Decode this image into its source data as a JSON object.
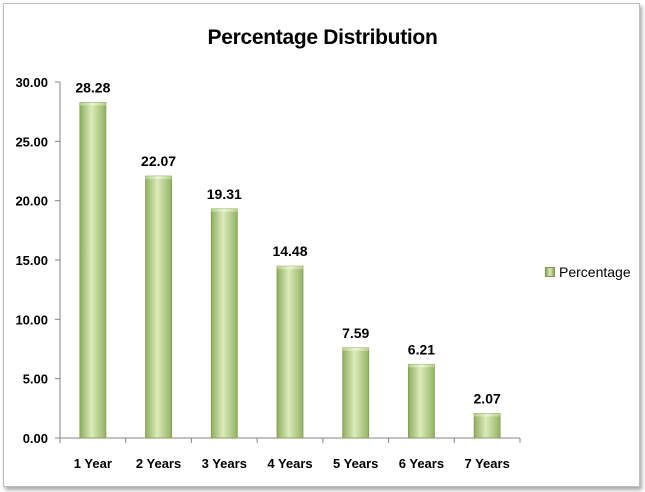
{
  "chart_data": {
    "type": "bar",
    "title": "Percentage Distribution",
    "categories": [
      "1 Year",
      "2 Years",
      "3 Years",
      "4 Years",
      "5 Years",
      "6 Years",
      "7 Years"
    ],
    "series": [
      {
        "name": "Percentage",
        "values": [
          28.28,
          22.07,
          19.31,
          14.48,
          7.59,
          6.21,
          2.07
        ],
        "color": "#a6c372"
      }
    ],
    "data_labels": [
      "28.28",
      "22.07",
      "19.31",
      "14.48",
      "7.59",
      "6.21",
      "2.07"
    ],
    "ylim": [
      0,
      30
    ],
    "yticks": [
      "0.00",
      "5.00",
      "10.00",
      "15.00",
      "20.00",
      "25.00",
      "30.00"
    ],
    "xlabel": "",
    "ylabel": "",
    "grid": false,
    "legend_position": "right"
  }
}
